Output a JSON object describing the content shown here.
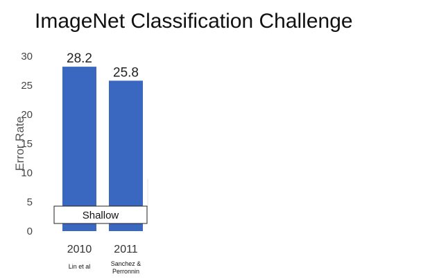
{
  "slide": {
    "title": "ImageNet Classification Challenge"
  },
  "chart_data": {
    "type": "bar",
    "title": "",
    "xlabel": "",
    "ylabel": "Error Rate",
    "ylim": [
      0,
      30
    ],
    "yticks": [
      0,
      5,
      10,
      15,
      20,
      25,
      30
    ],
    "grid": false,
    "categories": [
      "2010",
      "2011"
    ],
    "sublabels": [
      "Lin et al",
      "Sanchez & Perronnin"
    ],
    "values": [
      28.2,
      25.8
    ],
    "data_labels": [
      "28.2",
      "25.8"
    ],
    "bar_color": "#3a67bf",
    "overlay_label": "Shallow"
  }
}
